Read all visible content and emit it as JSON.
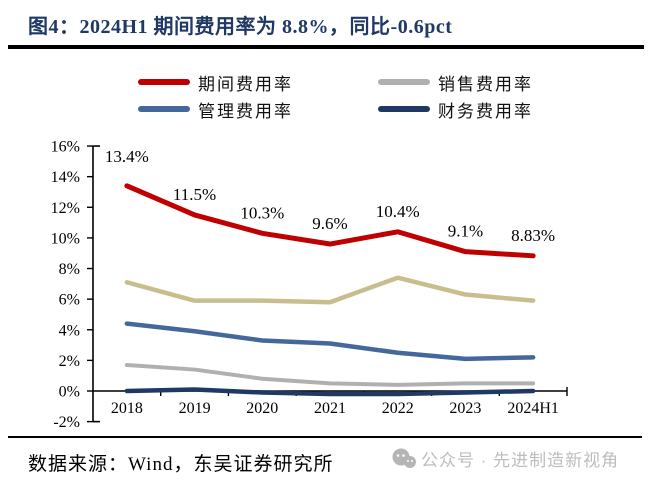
{
  "header": {
    "title": "图4：2024H1 期间费用率为 8.8%，同比-0.6pct"
  },
  "legend": {
    "items": [
      {
        "label": "期间费用率",
        "color": "#C00000"
      },
      {
        "label": "销售费用率",
        "color": "#B0B0B0"
      },
      {
        "label": "管理费用率",
        "color": "#44689B"
      },
      {
        "label": "财务费用率",
        "color": "#1F3864"
      }
    ]
  },
  "chart_data": {
    "type": "line",
    "title": "图4：2024H1 期间费用率为 8.8%，同比-0.6pct",
    "categories": [
      "2018",
      "2019",
      "2020",
      "2021",
      "2022",
      "2023",
      "2024H1"
    ],
    "ylim": [
      -2,
      16
    ],
    "grid": false,
    "legend_position": "top",
    "yticks": [
      {
        "value": 16,
        "label": "16%"
      },
      {
        "value": 14,
        "label": "14%"
      },
      {
        "value": 12,
        "label": "12%"
      },
      {
        "value": 10,
        "label": "10%"
      },
      {
        "value": 8,
        "label": "8%"
      },
      {
        "value": 6,
        "label": "6%"
      },
      {
        "value": 4,
        "label": "4%"
      },
      {
        "value": 2,
        "label": "2%"
      },
      {
        "value": 0,
        "label": "0%"
      },
      {
        "value": -2,
        "label": "-2%"
      }
    ],
    "series": [
      {
        "name": "期间费用率",
        "in_legend": true,
        "color": "#C00000",
        "stroke_width": 5,
        "values": [
          13.4,
          11.5,
          10.3,
          9.6,
          10.4,
          9.1,
          8.83
        ],
        "point_labels": [
          "13.4%",
          "11.5%",
          "10.3%",
          "9.6%",
          "10.4%",
          "9.1%",
          "8.83%"
        ]
      },
      {
        "name": "unlabeled (tan, not in legend)",
        "in_legend": false,
        "color": "#C8BE8D",
        "stroke_width": 4.5,
        "values": [
          7.1,
          5.9,
          5.9,
          5.8,
          7.4,
          6.3,
          5.9
        ]
      },
      {
        "name": "管理费用率",
        "in_legend": true,
        "color": "#44689B",
        "stroke_width": 4.5,
        "values": [
          4.4,
          3.9,
          3.3,
          3.1,
          2.5,
          2.1,
          2.2
        ]
      },
      {
        "name": "销售费用率",
        "in_legend": true,
        "color": "#B0B0B0",
        "stroke_width": 4,
        "values": [
          1.7,
          1.4,
          0.8,
          0.5,
          0.4,
          0.5,
          0.5
        ]
      },
      {
        "name": "财务费用率",
        "in_legend": true,
        "color": "#1F3864",
        "stroke_width": 4.5,
        "values": [
          0.0,
          0.1,
          -0.1,
          -0.2,
          -0.2,
          -0.1,
          0.0
        ]
      }
    ]
  },
  "footer": {
    "source": "数据来源：Wind，东吴证券研究所",
    "watermark": {
      "icon": "wechat-bubbles-icon",
      "text": "公众号 · 先进制造新视角"
    }
  }
}
